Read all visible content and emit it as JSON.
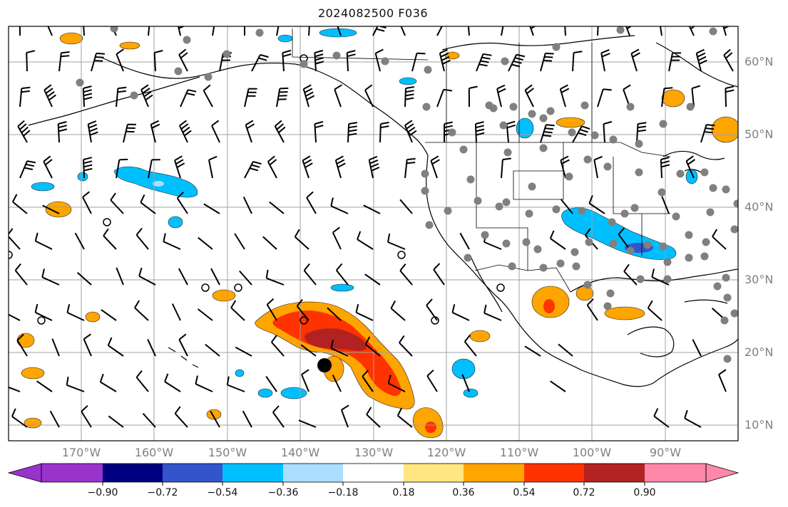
{
  "title": "2024082500 F036",
  "lat_labels": [
    "60°N",
    "50°N",
    "40°N",
    "30°N",
    "20°N",
    "10°N"
  ],
  "lon_labels": [
    "170°W",
    "160°W",
    "150°W",
    "140°W",
    "130°W",
    "120°W",
    "110°W",
    "100°W",
    "90°W"
  ],
  "colorbar": {
    "colors": [
      "#9933cc",
      "#000080",
      "#3355cc",
      "#00bfff",
      "#aadfff",
      "#ffffff",
      "#ffe680",
      "#ffa500",
      "#ff3300",
      "#b22222",
      "#ff88aa"
    ],
    "tick_labels": [
      "−0.90",
      "−0.72",
      "−0.54",
      "−0.36",
      "−0.18",
      "0.18",
      "0.36",
      "0.54",
      "0.72",
      "0.90"
    ]
  },
  "map": {
    "lon_range": [
      -177,
      -81
    ],
    "lat_range": [
      8,
      64
    ],
    "fields": [
      {
        "name": "tropical-system-positive",
        "level": 0.54,
        "color": "#ffa500"
      },
      {
        "name": "southern-plains-negative",
        "level": -0.36,
        "color": "#00bfff"
      },
      {
        "name": "gulf-of-alaska-negative",
        "level": -0.36,
        "color": "#00bfff"
      }
    ],
    "storm_marker": {
      "lon": -136.5,
      "lat": 18.5
    }
  }
}
